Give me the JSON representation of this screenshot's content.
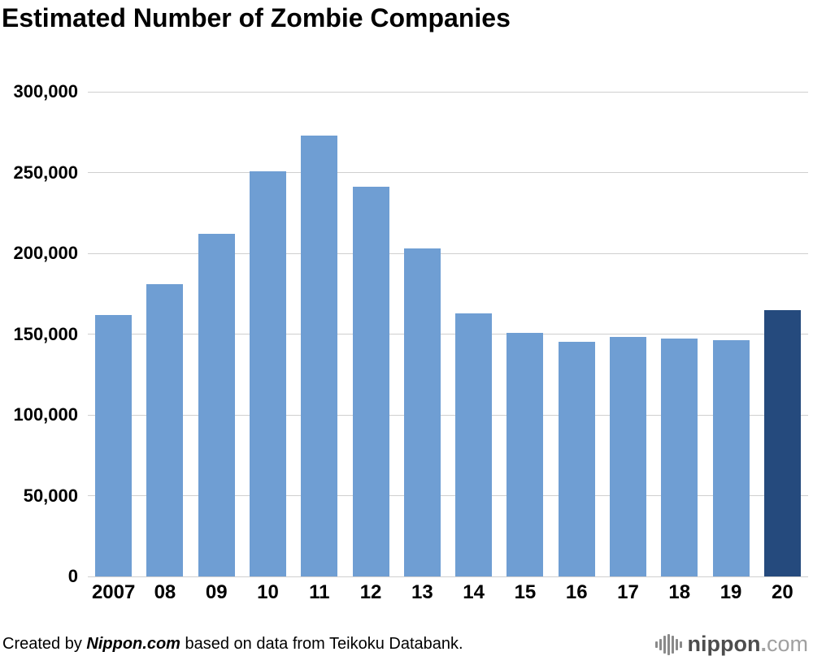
{
  "title": "Estimated Number of Zombie Companies",
  "chart_data": {
    "type": "bar",
    "title": "Estimated Number of Zombie Companies",
    "categories": [
      "2007",
      "08",
      "09",
      "10",
      "11",
      "12",
      "13",
      "14",
      "15",
      "16",
      "17",
      "18",
      "19",
      "20"
    ],
    "values": [
      162000,
      181000,
      212000,
      251000,
      273000,
      241000,
      203000,
      163000,
      151000,
      145000,
      148000,
      147000,
      146000,
      165000
    ],
    "highlight_index": 13,
    "bar_color": "#6f9ed3",
    "highlight_color": "#254a7d",
    "grid_color": "#cfcfcf",
    "ylim": [
      0,
      300000
    ],
    "ytick_step": 50000,
    "ytick_labels": [
      "0",
      "50,000",
      "100,000",
      "150,000",
      "200,000",
      "250,000",
      "300,000"
    ],
    "grid": "on",
    "legend": "none",
    "xlabel": "",
    "ylabel": ""
  },
  "footer": {
    "credit_prefix": "Created by ",
    "credit_source": "Nippon.com",
    "credit_suffix": " based on data from Teikoku Databank.",
    "logo_main": "nippon",
    "logo_dot": ".",
    "logo_tld": "com"
  }
}
